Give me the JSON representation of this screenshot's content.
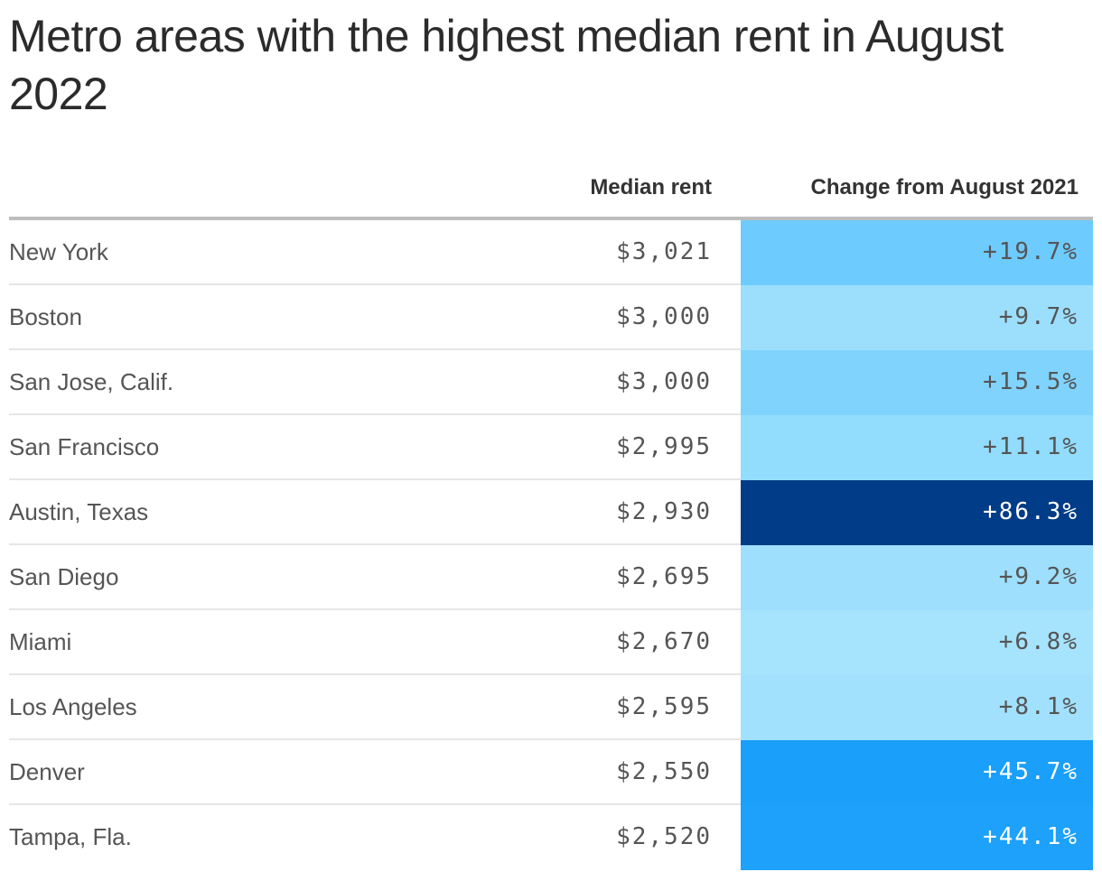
{
  "chart_data": {
    "type": "table",
    "title": "Metro areas with the highest median rent in August 2022",
    "columns": [
      "",
      "Median rent",
      "Change from August 2021"
    ],
    "rows": [
      {
        "metro": "New York",
        "rent": "$3,021",
        "change": "+19.7%",
        "change_value": 19.7,
        "bg": "#6ecbfd",
        "fg": "#555555"
      },
      {
        "metro": "Boston",
        "rent": "$3,000",
        "change": "+9.7%",
        "change_value": 9.7,
        "bg": "#9bdffd",
        "fg": "#555555"
      },
      {
        "metro": "San Jose, Calif.",
        "rent": "$3,000",
        "change": "+15.5%",
        "change_value": 15.5,
        "bg": "#80d3fd",
        "fg": "#555555"
      },
      {
        "metro": "San Francisco",
        "rent": "$2,995",
        "change": "+11.1%",
        "change_value": 11.1,
        "bg": "#92dcfd",
        "fg": "#555555"
      },
      {
        "metro": "Austin, Texas",
        "rent": "$2,930",
        "change": "+86.3%",
        "change_value": 86.3,
        "bg": "#003c87",
        "fg": "#ffffff"
      },
      {
        "metro": "San Diego",
        "rent": "$2,695",
        "change": "+9.2%",
        "change_value": 9.2,
        "bg": "#9ddffd",
        "fg": "#555555"
      },
      {
        "metro": "Miami",
        "rent": "$2,670",
        "change": "+6.8%",
        "change_value": 6.8,
        "bg": "#a6e3fd",
        "fg": "#555555"
      },
      {
        "metro": "Los Angeles",
        "rent": "$2,595",
        "change": "+8.1%",
        "change_value": 8.1,
        "bg": "#a1e1fd",
        "fg": "#555555"
      },
      {
        "metro": "Denver",
        "rent": "$2,550",
        "change": "+45.7%",
        "change_value": 45.7,
        "bg": "#1a9ffb",
        "fg": "#ffffff"
      },
      {
        "metro": "Tampa, Fla.",
        "rent": "$2,520",
        "change": "+44.1%",
        "change_value": 44.1,
        "bg": "#1da1fb",
        "fg": "#ffffff"
      }
    ]
  }
}
